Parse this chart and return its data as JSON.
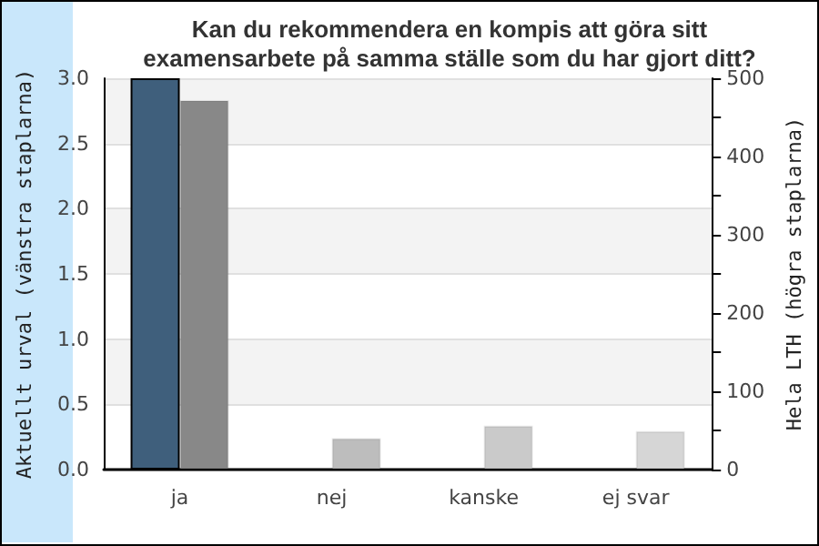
{
  "chart_data": {
    "type": "bar",
    "title": "Kan du rekommendera en kompis att göra sitt\nexamensarbete på samma ställe som du har gjort ditt?",
    "categories": [
      "ja",
      "nej",
      "kanske",
      "ej svar"
    ],
    "ylabel": "Aktuellt urval (vänstra staplarna)",
    "y2label": "Hela LTH (högra staplarna)",
    "series": [
      {
        "color": "#3f5f7c",
        "values": [
          3,
          0,
          0,
          0
        ]
      },
      {
        "axis": "y2",
        "colors": [
          "#888888",
          "#bdbdbd",
          "#cacaca",
          "#d6d6d6"
        ],
        "values": [
          472,
          40,
          56,
          49
        ]
      }
    ],
    "ylim": [
      0,
      3
    ],
    "yticks": [
      {
        "value": 0,
        "label": "0.0"
      },
      0.5,
      {
        "value": 1,
        "label": "1.0"
      },
      1.5,
      {
        "value": 2,
        "label": "2.0"
      },
      2.5,
      {
        "value": 3,
        "label": "3.0"
      }
    ],
    "y2lim": [
      0,
      500
    ],
    "y2ticks": [
      0,
      {
        "value": 50,
        "label": null
      },
      100,
      {
        "value": 150,
        "label": null
      },
      200,
      {
        "value": 250,
        "label": null
      },
      300,
      {
        "value": 350,
        "label": null
      },
      400,
      {
        "value": 450,
        "label": null
      },
      500
    ],
    "grid": "y"
  }
}
